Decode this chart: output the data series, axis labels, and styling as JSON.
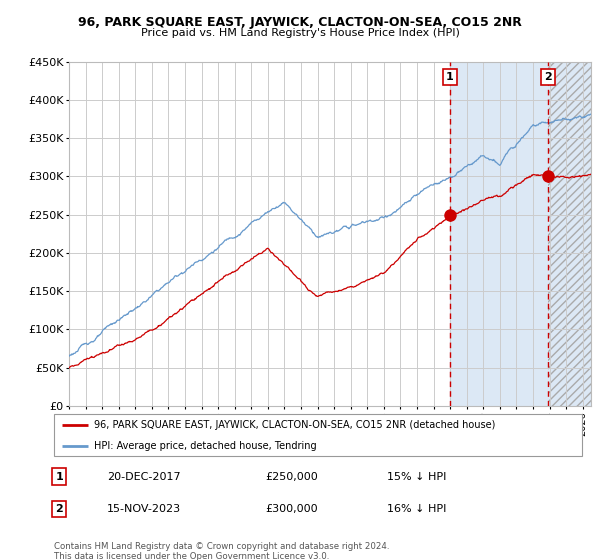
{
  "title1": "96, PARK SQUARE EAST, JAYWICK, CLACTON-ON-SEA, CO15 2NR",
  "title2": "Price paid vs. HM Land Registry's House Price Index (HPI)",
  "ylim": [
    0,
    450000
  ],
  "yticks": [
    0,
    50000,
    100000,
    150000,
    200000,
    250000,
    300000,
    350000,
    400000,
    450000
  ],
  "ytick_labels": [
    "£0",
    "£50K",
    "£100K",
    "£150K",
    "£200K",
    "£250K",
    "£300K",
    "£350K",
    "£400K",
    "£450K"
  ],
  "hpi_color": "#6699cc",
  "price_color": "#cc0000",
  "shade_color": "#dce8f5",
  "point1_date_label": "20-DEC-2017",
  "point1_price": 250000,
  "point1_hpi_pct": "15% ↓ HPI",
  "point2_date_label": "15-NOV-2023",
  "point2_price": 300000,
  "point2_hpi_pct": "16% ↓ HPI",
  "point1_x": 2017.97,
  "point2_x": 2023.88,
  "legend_label1": "96, PARK SQUARE EAST, JAYWICK, CLACTON-ON-SEA, CO15 2NR (detached house)",
  "legend_label2": "HPI: Average price, detached house, Tendring",
  "footer": "Contains HM Land Registry data © Crown copyright and database right 2024.\nThis data is licensed under the Open Government Licence v3.0.",
  "xmin": 1995.0,
  "xmax": 2026.5
}
